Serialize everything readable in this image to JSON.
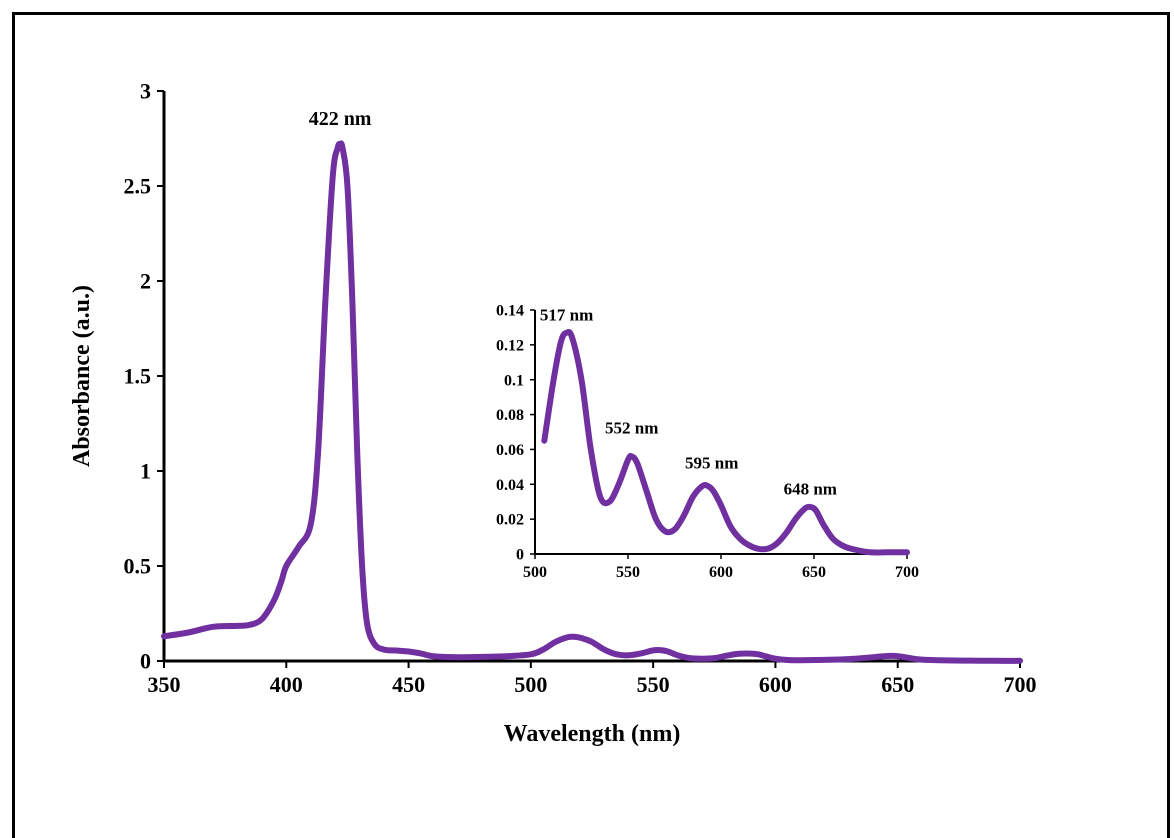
{
  "chart_data": [
    {
      "type": "line",
      "title": "",
      "xlabel": "Wavelength (nm)",
      "ylabel": "Absorbance (a.u.)",
      "xlim": [
        350,
        700
      ],
      "ylim": [
        0,
        3
      ],
      "xticks": [
        "350",
        "400",
        "450",
        "500",
        "550",
        "600",
        "650",
        "700"
      ],
      "yticks": [
        "0",
        "0.5",
        "1",
        "1.5",
        "2",
        "2.5",
        "3"
      ],
      "grid": false,
      "series": [
        {
          "color": "#7030a0",
          "x": [
            350,
            360,
            370,
            380,
            385,
            390,
            395,
            398,
            400,
            405,
            410,
            413,
            416,
            419,
            421,
            422,
            423,
            425,
            427,
            429,
            431,
            433,
            436,
            440,
            445,
            450,
            455,
            460,
            470,
            480,
            490,
            500,
            505,
            510,
            515,
            518,
            521,
            525,
            530,
            535,
            540,
            545,
            550,
            553,
            556,
            560,
            565,
            570,
            575,
            580,
            585,
            590,
            593,
            596,
            600,
            605,
            610,
            620,
            630,
            640,
            645,
            648,
            651,
            655,
            660,
            670,
            680,
            690,
            700
          ],
          "y": [
            0.13,
            0.15,
            0.18,
            0.185,
            0.19,
            0.22,
            0.32,
            0.42,
            0.5,
            0.6,
            0.72,
            1.1,
            1.9,
            2.55,
            2.7,
            2.72,
            2.7,
            2.5,
            1.9,
            1.1,
            0.5,
            0.2,
            0.09,
            0.06,
            0.055,
            0.05,
            0.04,
            0.025,
            0.02,
            0.022,
            0.025,
            0.035,
            0.06,
            0.1,
            0.125,
            0.127,
            0.12,
            0.1,
            0.06,
            0.035,
            0.03,
            0.04,
            0.056,
            0.057,
            0.05,
            0.03,
            0.015,
            0.012,
            0.015,
            0.028,
            0.038,
            0.039,
            0.035,
            0.025,
            0.012,
            0.005,
            0.004,
            0.006,
            0.01,
            0.02,
            0.026,
            0.027,
            0.024,
            0.015,
            0.007,
            0.003,
            0.002,
            0.001,
            0.001
          ]
        }
      ],
      "annotations": [
        {
          "text": "422 nm",
          "x": 422,
          "y": 2.82
        }
      ]
    },
    {
      "type": "line",
      "title": "",
      "xlabel": "",
      "ylabel": "",
      "xlim": [
        500,
        700
      ],
      "ylim": [
        0,
        0.14
      ],
      "xticks": [
        "500",
        "550",
        "600",
        "650",
        "700"
      ],
      "yticks": [
        "0",
        "0.02",
        "0.04",
        "0.06",
        "0.08",
        "0.1",
        "0.12",
        "0.14"
      ],
      "grid": false,
      "series": [
        {
          "color": "#7030a0",
          "x": [
            505,
            510,
            514,
            517,
            520,
            525,
            530,
            535,
            540,
            545,
            550,
            552,
            555,
            560,
            565,
            570,
            575,
            580,
            585,
            590,
            593,
            596,
            600,
            605,
            610,
            615,
            620,
            625,
            630,
            635,
            640,
            645,
            648,
            651,
            655,
            660,
            665,
            670,
            680,
            690,
            700
          ],
          "y": [
            0.065,
            0.1,
            0.122,
            0.127,
            0.124,
            0.1,
            0.06,
            0.033,
            0.03,
            0.04,
            0.054,
            0.056,
            0.052,
            0.036,
            0.02,
            0.013,
            0.014,
            0.022,
            0.033,
            0.039,
            0.039,
            0.036,
            0.028,
            0.016,
            0.009,
            0.005,
            0.003,
            0.003,
            0.006,
            0.012,
            0.02,
            0.026,
            0.027,
            0.025,
            0.017,
            0.009,
            0.005,
            0.003,
            0.001,
            0.001,
            0.001
          ]
        }
      ],
      "annotations": [
        {
          "text": "517 nm",
          "x": 517,
          "y": 0.134
        },
        {
          "text": "552 nm",
          "x": 552,
          "y": 0.069
        },
        {
          "text": "595 nm",
          "x": 595,
          "y": 0.049
        },
        {
          "text": "648 nm",
          "x": 648,
          "y": 0.034
        }
      ]
    }
  ]
}
